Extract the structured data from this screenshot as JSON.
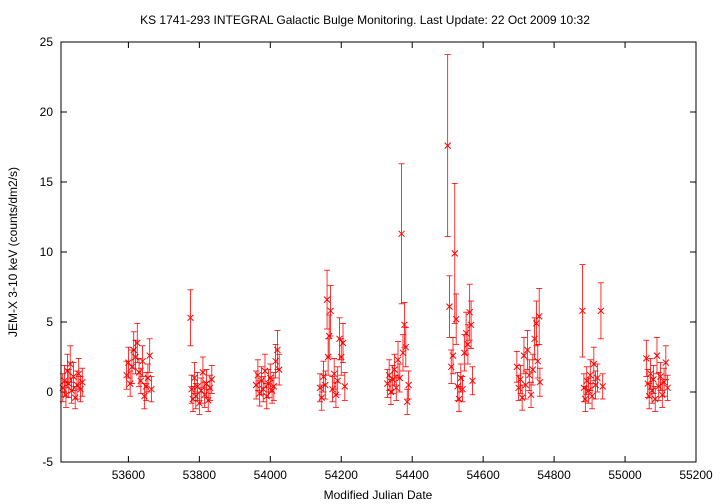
{
  "chart_data": {
    "type": "scatter",
    "title": "KS 1741-293   INTEGRAL Galactic Bulge Monitoring.  Last Update: 22 Oct 2009 10:32",
    "xlabel": "Modified Julian Date",
    "ylabel": "JEM-X 3-10 keV (counts/dm2/s)",
    "xlim": [
      53410,
      55200
    ],
    "ylim": [
      -5,
      25
    ],
    "xticks": [
      53600,
      53800,
      54000,
      54200,
      54400,
      54600,
      54800,
      55000,
      55200
    ],
    "yticks": [
      -5,
      0,
      5,
      10,
      15,
      20,
      25
    ],
    "grid": false,
    "marker": "x",
    "color": "#ff0000",
    "series": [
      {
        "values": [
          {
            "x": 53415,
            "y": 0.3,
            "err": 1.0
          },
          {
            "x": 53420,
            "y": 0.8,
            "err": 1.1
          },
          {
            "x": 53424,
            "y": -0.2,
            "err": 0.9
          },
          {
            "x": 53428,
            "y": 1.5,
            "err": 1.2
          },
          {
            "x": 53432,
            "y": 0.6,
            "err": 1.0
          },
          {
            "x": 53436,
            "y": 2.0,
            "err": 1.3
          },
          {
            "x": 53440,
            "y": 0.1,
            "err": 0.9
          },
          {
            "x": 53445,
            "y": 1.1,
            "err": 1.0
          },
          {
            "x": 53450,
            "y": -0.4,
            "err": 0.8
          },
          {
            "x": 53455,
            "y": 0.5,
            "err": 1.0
          },
          {
            "x": 53460,
            "y": 1.3,
            "err": 1.1
          },
          {
            "x": 53465,
            "y": 0.2,
            "err": 0.9
          },
          {
            "x": 53470,
            "y": 0.7,
            "err": 1.0
          },
          {
            "x": 53595,
            "y": 1.2,
            "err": 1.0
          },
          {
            "x": 53600,
            "y": 2.1,
            "err": 1.1
          },
          {
            "x": 53605,
            "y": 0.6,
            "err": 0.9
          },
          {
            "x": 53610,
            "y": 1.8,
            "err": 1.2
          },
          {
            "x": 53615,
            "y": 3.0,
            "err": 1.3
          },
          {
            "x": 53620,
            "y": 2.5,
            "err": 1.2
          },
          {
            "x": 53625,
            "y": 3.5,
            "err": 1.4
          },
          {
            "x": 53630,
            "y": 1.4,
            "err": 1.0
          },
          {
            "x": 53635,
            "y": 0.8,
            "err": 0.9
          },
          {
            "x": 53640,
            "y": 2.2,
            "err": 1.1
          },
          {
            "x": 53645,
            "y": -0.3,
            "err": 0.9
          },
          {
            "x": 53650,
            "y": 0.4,
            "err": 1.0
          },
          {
            "x": 53655,
            "y": 1.0,
            "err": 1.0
          },
          {
            "x": 53660,
            "y": 2.6,
            "err": 1.2
          },
          {
            "x": 53665,
            "y": 0.2,
            "err": 0.9
          },
          {
            "x": 53775,
            "y": 5.3,
            "err": 2.0
          },
          {
            "x": 53778,
            "y": 0.2,
            "err": 1.0
          },
          {
            "x": 53782,
            "y": -0.5,
            "err": 0.9
          },
          {
            "x": 53786,
            "y": 1.0,
            "err": 1.1
          },
          {
            "x": 53790,
            "y": -0.3,
            "err": 0.9
          },
          {
            "x": 53795,
            "y": 0.4,
            "err": 1.0
          },
          {
            "x": 53800,
            "y": -0.8,
            "err": 0.8
          },
          {
            "x": 53805,
            "y": 0.1,
            "err": 0.9
          },
          {
            "x": 53810,
            "y": 1.4,
            "err": 1.1
          },
          {
            "x": 53815,
            "y": -0.2,
            "err": 0.9
          },
          {
            "x": 53820,
            "y": 0.6,
            "err": 1.0
          },
          {
            "x": 53825,
            "y": -0.6,
            "err": 0.8
          },
          {
            "x": 53830,
            "y": 0.3,
            "err": 0.9
          },
          {
            "x": 53835,
            "y": 0.9,
            "err": 1.0
          },
          {
            "x": 53960,
            "y": 0.5,
            "err": 1.0
          },
          {
            "x": 53965,
            "y": 1.2,
            "err": 1.1
          },
          {
            "x": 53970,
            "y": -0.1,
            "err": 0.9
          },
          {
            "x": 53975,
            "y": 0.8,
            "err": 1.0
          },
          {
            "x": 53980,
            "y": 0.2,
            "err": 0.9
          },
          {
            "x": 53985,
            "y": 1.5,
            "err": 1.2
          },
          {
            "x": 53990,
            "y": -0.3,
            "err": 0.9
          },
          {
            "x": 53995,
            "y": 0.6,
            "err": 1.0
          },
          {
            "x": 54000,
            "y": 1.0,
            "err": 1.0
          },
          {
            "x": 54005,
            "y": 0.1,
            "err": 0.9
          },
          {
            "x": 54010,
            "y": 0.4,
            "err": 1.0
          },
          {
            "x": 54015,
            "y": 2.2,
            "err": 1.2
          },
          {
            "x": 54020,
            "y": 3.0,
            "err": 1.4
          },
          {
            "x": 54025,
            "y": 1.6,
            "err": 1.1
          },
          {
            "x": 54140,
            "y": 0.3,
            "err": 1.0
          },
          {
            "x": 54145,
            "y": -0.4,
            "err": 0.9
          },
          {
            "x": 54150,
            "y": 1.1,
            "err": 1.1
          },
          {
            "x": 54155,
            "y": 0.5,
            "err": 1.0
          },
          {
            "x": 54160,
            "y": 6.6,
            "err": 2.1
          },
          {
            "x": 54163,
            "y": 2.5,
            "err": 1.3
          },
          {
            "x": 54166,
            "y": 4.0,
            "err": 1.5
          },
          {
            "x": 54170,
            "y": 5.8,
            "err": 1.8
          },
          {
            "x": 54175,
            "y": 0.2,
            "err": 0.9
          },
          {
            "x": 54180,
            "y": 1.3,
            "err": 1.1
          },
          {
            "x": 54185,
            "y": -0.2,
            "err": 0.9
          },
          {
            "x": 54190,
            "y": 0.8,
            "err": 1.0
          },
          {
            "x": 54195,
            "y": 3.8,
            "err": 1.5
          },
          {
            "x": 54200,
            "y": 2.5,
            "err": 1.3
          },
          {
            "x": 54205,
            "y": 3.5,
            "err": 1.4
          },
          {
            "x": 54210,
            "y": 0.4,
            "err": 1.0
          },
          {
            "x": 54330,
            "y": 0.6,
            "err": 1.0
          },
          {
            "x": 54335,
            "y": 1.2,
            "err": 1.1
          },
          {
            "x": 54340,
            "y": 0.0,
            "err": 0.9
          },
          {
            "x": 54345,
            "y": 0.9,
            "err": 1.0
          },
          {
            "x": 54350,
            "y": 1.6,
            "err": 1.1
          },
          {
            "x": 54355,
            "y": 0.3,
            "err": 0.9
          },
          {
            "x": 54360,
            "y": 2.3,
            "err": 1.3
          },
          {
            "x": 54365,
            "y": 1.0,
            "err": 1.0
          },
          {
            "x": 54370,
            "y": 11.3,
            "err": 5.0
          },
          {
            "x": 54374,
            "y": 2.8,
            "err": 1.3
          },
          {
            "x": 54378,
            "y": 4.8,
            "err": 1.6
          },
          {
            "x": 54382,
            "y": 3.2,
            "err": 1.4
          },
          {
            "x": 54386,
            "y": -0.7,
            "err": 0.9
          },
          {
            "x": 54390,
            "y": 0.5,
            "err": 1.0
          },
          {
            "x": 54500,
            "y": 17.6,
            "err": 6.5
          },
          {
            "x": 54505,
            "y": 6.1,
            "err": 2.2
          },
          {
            "x": 54510,
            "y": 1.8,
            "err": 1.2
          },
          {
            "x": 54515,
            "y": 2.6,
            "err": 1.3
          },
          {
            "x": 54520,
            "y": 9.9,
            "err": 5.0
          },
          {
            "x": 54524,
            "y": 5.2,
            "err": 1.8
          },
          {
            "x": 54528,
            "y": 0.4,
            "err": 1.0
          },
          {
            "x": 54532,
            "y": -0.5,
            "err": 0.9
          },
          {
            "x": 54537,
            "y": 1.0,
            "err": 1.0
          },
          {
            "x": 54542,
            "y": 0.2,
            "err": 0.9
          },
          {
            "x": 54547,
            "y": 2.8,
            "err": 1.3
          },
          {
            "x": 54552,
            "y": 4.2,
            "err": 1.5
          },
          {
            "x": 54557,
            "y": 3.4,
            "err": 1.4
          },
          {
            "x": 54562,
            "y": 5.7,
            "err": 2.0
          },
          {
            "x": 54566,
            "y": 4.8,
            "err": 1.7
          },
          {
            "x": 54570,
            "y": 0.8,
            "err": 1.0
          },
          {
            "x": 54695,
            "y": 1.8,
            "err": 1.1
          },
          {
            "x": 54700,
            "y": 0.3,
            "err": 0.9
          },
          {
            "x": 54705,
            "y": 0.9,
            "err": 1.0
          },
          {
            "x": 54710,
            "y": -0.4,
            "err": 0.9
          },
          {
            "x": 54715,
            "y": 2.6,
            "err": 1.3
          },
          {
            "x": 54720,
            "y": 0.5,
            "err": 1.0
          },
          {
            "x": 54725,
            "y": 3.0,
            "err": 1.4
          },
          {
            "x": 54730,
            "y": 1.2,
            "err": 1.1
          },
          {
            "x": 54735,
            "y": -0.2,
            "err": 0.9
          },
          {
            "x": 54740,
            "y": 1.6,
            "err": 1.1
          },
          {
            "x": 54745,
            "y": 3.8,
            "err": 1.5
          },
          {
            "x": 54750,
            "y": 4.9,
            "err": 1.6
          },
          {
            "x": 54754,
            "y": 2.2,
            "err": 1.2
          },
          {
            "x": 54758,
            "y": 5.4,
            "err": 2.0
          },
          {
            "x": 54760,
            "y": 0.7,
            "err": 1.0
          },
          {
            "x": 54880,
            "y": 5.8,
            "err": 3.3
          },
          {
            "x": 54884,
            "y": 0.3,
            "err": 1.0
          },
          {
            "x": 54888,
            "y": -0.5,
            "err": 0.9
          },
          {
            "x": 54892,
            "y": 0.8,
            "err": 1.0
          },
          {
            "x": 54897,
            "y": 0.1,
            "err": 0.9
          },
          {
            "x": 54902,
            "y": 1.2,
            "err": 1.1
          },
          {
            "x": 54907,
            "y": -0.3,
            "err": 0.9
          },
          {
            "x": 54912,
            "y": 2.0,
            "err": 1.2
          },
          {
            "x": 54917,
            "y": 0.5,
            "err": 1.0
          },
          {
            "x": 54922,
            "y": 1.0,
            "err": 1.0
          },
          {
            "x": 54932,
            "y": 5.8,
            "err": 2.0
          },
          {
            "x": 54937,
            "y": 0.4,
            "err": 0.9
          },
          {
            "x": 55060,
            "y": 2.4,
            "err": 1.3
          },
          {
            "x": 55064,
            "y": 0.6,
            "err": 1.0
          },
          {
            "x": 55068,
            "y": -0.3,
            "err": 0.9
          },
          {
            "x": 55072,
            "y": 1.3,
            "err": 1.1
          },
          {
            "x": 55076,
            "y": 0.1,
            "err": 0.9
          },
          {
            "x": 55080,
            "y": 0.9,
            "err": 1.0
          },
          {
            "x": 55085,
            "y": -0.5,
            "err": 0.9
          },
          {
            "x": 55090,
            "y": 2.6,
            "err": 1.3
          },
          {
            "x": 55095,
            "y": 0.4,
            "err": 1.0
          },
          {
            "x": 55100,
            "y": 1.1,
            "err": 1.0
          },
          {
            "x": 55105,
            "y": -0.2,
            "err": 0.9
          },
          {
            "x": 55110,
            "y": 0.7,
            "err": 1.0
          },
          {
            "x": 55115,
            "y": 2.1,
            "err": 1.2
          },
          {
            "x": 55120,
            "y": 0.3,
            "err": 0.9
          }
        ]
      }
    ]
  }
}
